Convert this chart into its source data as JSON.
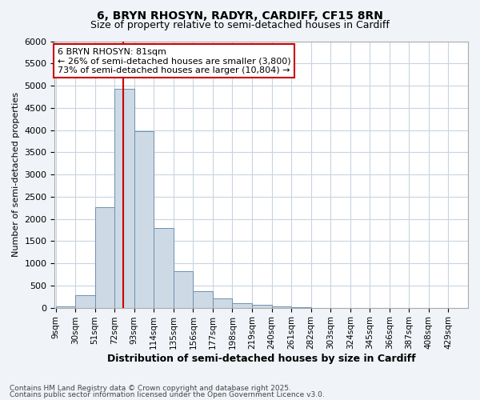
{
  "title1": "6, BRYN RHOSYN, RADYR, CARDIFF, CF15 8RN",
  "title2": "Size of property relative to semi-detached houses in Cardiff",
  "xlabel": "Distribution of semi-detached houses by size in Cardiff",
  "ylabel": "Number of semi-detached properties",
  "bar_edges": [
    9,
    30,
    51,
    72,
    93,
    114,
    135,
    156,
    177,
    198,
    219,
    240,
    261,
    282,
    303,
    324,
    345,
    366,
    387,
    408,
    429
  ],
  "bar_heights": [
    30,
    280,
    2270,
    4930,
    3970,
    1790,
    830,
    380,
    210,
    100,
    70,
    35,
    5,
    0,
    0,
    0,
    0,
    0,
    0,
    0
  ],
  "bar_color": "#cdd9e5",
  "bar_edgecolor": "#7090b0",
  "red_line_x": 81,
  "ylim": [
    0,
    6000
  ],
  "yticks": [
    0,
    500,
    1000,
    1500,
    2000,
    2500,
    3000,
    3500,
    4000,
    4500,
    5000,
    5500,
    6000
  ],
  "annotation_title": "6 BRYN RHOSYN: 81sqm",
  "annotation_line1": "← 26% of semi-detached houses are smaller (3,800)",
  "annotation_line2": "73% of semi-detached houses are larger (10,804) →",
  "annotation_box_facecolor": "#ffffff",
  "annotation_box_edgecolor": "#cc0000",
  "footnote1": "Contains HM Land Registry data © Crown copyright and database right 2025.",
  "footnote2": "Contains public sector information licensed under the Open Government Licence v3.0.",
  "bg_color": "#f0f4f8",
  "plot_bg_color": "#ffffff",
  "grid_color": "#c8d4e0",
  "title1_fontsize": 10,
  "title2_fontsize": 9,
  "tick_labels": [
    "9sqm",
    "30sqm",
    "51sqm",
    "72sqm",
    "93sqm",
    "114sqm",
    "135sqm",
    "156sqm",
    "177sqm",
    "198sqm",
    "219sqm",
    "240sqm",
    "261sqm",
    "282sqm",
    "303sqm",
    "324sqm",
    "345sqm",
    "366sqm",
    "387sqm",
    "408sqm",
    "429sqm"
  ]
}
